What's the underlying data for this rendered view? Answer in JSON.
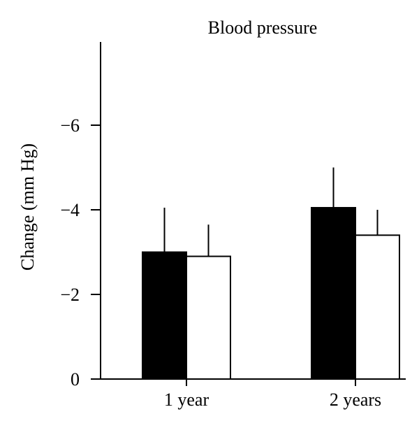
{
  "chart_data": {
    "type": "bar",
    "title": "Blood pressure",
    "ylabel": "Change (mm Hg)",
    "xlabel": "",
    "ylim": [
      0,
      -8
    ],
    "yticks": [
      0,
      -2,
      -4,
      -6
    ],
    "ytick_labels": [
      "0",
      "−2",
      "−4",
      "−6"
    ],
    "categories": [
      "1 year",
      "2 years"
    ],
    "series": [
      {
        "fill": "#000000",
        "values": [
          -3.0,
          -4.05
        ],
        "error_upper": [
          -4.05,
          -5.0
        ]
      },
      {
        "fill": "#ffffff",
        "values": [
          -2.9,
          -3.4
        ],
        "error_upper": [
          -3.65,
          -4.0
        ]
      }
    ],
    "grid": false,
    "legend": "none"
  }
}
